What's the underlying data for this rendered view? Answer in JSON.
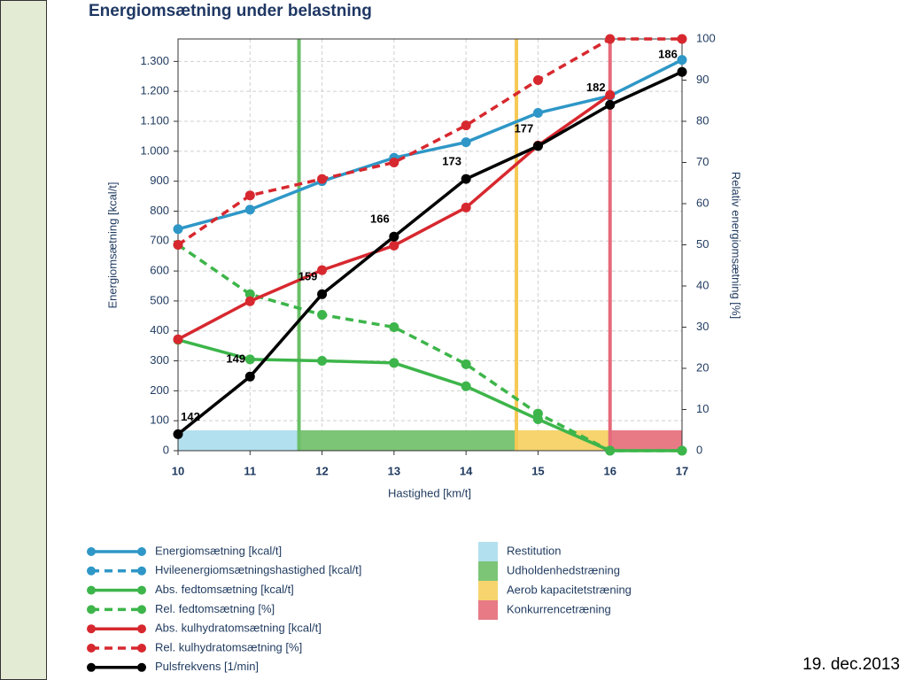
{
  "chart_data": {
    "type": "line",
    "title": "Energiomsætning under belastning",
    "xlabel": "Hastighed [km/t]",
    "ylabel": "Energiomsætning [kcal/t]",
    "y2label": "Relativ energiomsætning [%]",
    "x": [
      10,
      11,
      12,
      13,
      14,
      15,
      16,
      17
    ],
    "xlim": [
      10,
      17
    ],
    "xticks": [
      10,
      11,
      12,
      13,
      14,
      15,
      16,
      17
    ],
    "ylim": [
      0,
      1375
    ],
    "yticks": [
      0,
      100,
      200,
      300,
      400,
      500,
      600,
      700,
      800,
      900,
      {
        "value": 1000,
        "label": "1.000"
      },
      {
        "value": 1100,
        "label": "1.100"
      },
      {
        "value": 1200,
        "label": "1.200"
      },
      {
        "value": 1300,
        "label": "1.300"
      }
    ],
    "y2lim": [
      0,
      100
    ],
    "y2ticks": [
      0,
      10,
      20,
      30,
      40,
      50,
      60,
      70,
      80,
      90,
      100
    ],
    "y3lim": [
      140,
      190
    ],
    "grid": true,
    "series": [
      {
        "name": "Energiomsætning [kcal/t]",
        "color": "#2e97c7",
        "dash": false,
        "values": [
          740,
          805,
          900,
          978,
          1030,
          1128,
          1185,
          1305
        ]
      },
      {
        "name": "Hvileenergiomsætningshastighed  [kcal/t]",
        "color": "#2e97c7",
        "dash": true,
        "values": [
          null,
          null,
          null,
          null,
          null,
          null,
          null,
          null
        ]
      },
      {
        "name": "Abs. fedtomsætning [kcal/t]",
        "color": "#3db54a",
        "dash": false,
        "values": [
          370,
          305,
          300,
          293,
          215,
          105,
          0,
          0
        ]
      },
      {
        "name": "Rel. fedtomsætning [%]",
        "color": "#3db54a",
        "dash": true,
        "axis": "y2",
        "values": [
          50,
          38,
          33,
          30,
          21,
          9,
          0,
          0
        ]
      },
      {
        "name": "Abs. kulhydratomsætning [kcal/t]",
        "color": "#d7282f",
        "dash": false,
        "values": [
          372,
          499,
          603,
          685,
          812,
          1019,
          1188,
          null
        ]
      },
      {
        "name": "Rel. kulhydratomsætning [%]",
        "color": "#d7282f",
        "dash": true,
        "axis": "y2",
        "values": [
          50,
          62,
          66,
          70,
          79,
          90,
          100,
          100
        ]
      },
      {
        "name": "Pulsfrekvens [1/min]",
        "color": "#000000",
        "dash": false,
        "axis": "y3",
        "show_values": true,
        "values": [
          142,
          149,
          159,
          166,
          173,
          177,
          182,
          186
        ]
      }
    ],
    "zones": [
      {
        "name": "Restitution",
        "color": "#b3e0ee",
        "line": null,
        "from": 10,
        "to": 11.68
      },
      {
        "name": "Udholdenhedstræning",
        "color": "#7cc576",
        "line": "#6bbf68",
        "from": 11.68,
        "to": 14.7
      },
      {
        "name": "Aerob kapacitetstræning",
        "color": "#f7d46e",
        "line": "#f6c955",
        "from": 14.7,
        "to": 16
      },
      {
        "name": "Konkurrencetræning",
        "color": "#e87a86",
        "line": "#e66a79",
        "from": 16,
        "to": 17
      }
    ]
  },
  "date": "19. dec.2013"
}
